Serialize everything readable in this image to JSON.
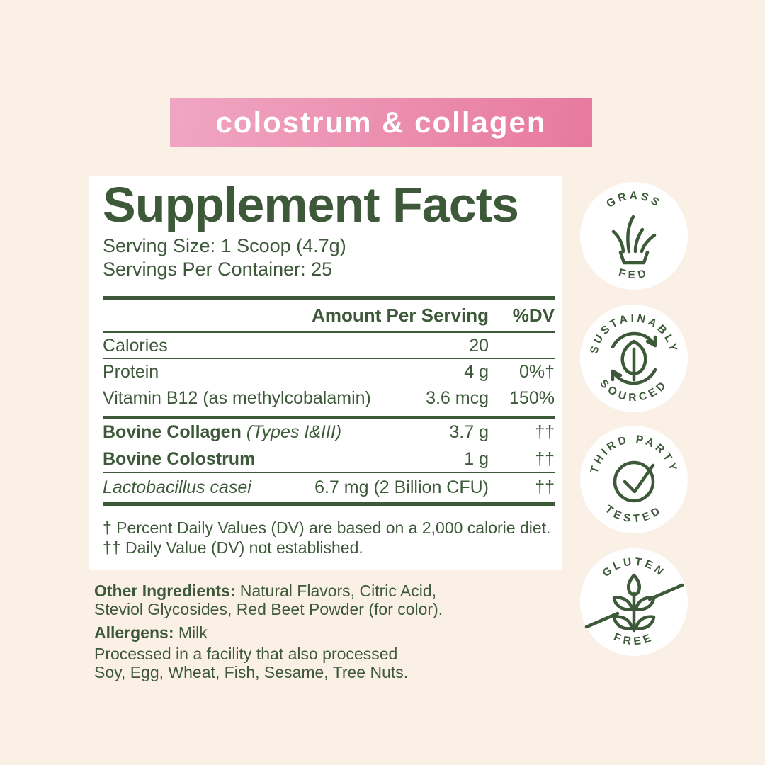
{
  "colors": {
    "background": "#FAF0E5",
    "card": "#FFFFFF",
    "green": "#3D5939",
    "pink_light": "#F0A6C2",
    "pink_dark": "#E8799E",
    "text_on_banner": "#FFFFFF"
  },
  "banner": {
    "label": "colostrum & collagen"
  },
  "panel": {
    "title": "Supplement Facts",
    "serving_size": "Serving Size: 1 Scoop (4.7g)",
    "servings_per_container": "Servings Per Container: 25",
    "table": {
      "amount_header": "Amount Per Serving",
      "dv_header": "%DV",
      "section1": [
        {
          "name": "Calories",
          "amount": "20",
          "dv": ""
        },
        {
          "name": "Protein",
          "amount": "4 g",
          "dv": "0%†"
        },
        {
          "name": "Vitamin B12 (as methylcobalamin)",
          "amount": "3.6 mcg",
          "dv": "150%"
        }
      ],
      "section2": [
        {
          "name": "Bovine Collagen",
          "name_style": "bold",
          "name_suffix": "(Types I&III)",
          "suffix_style": "italic",
          "amount": "3.7 g",
          "dv": "††"
        },
        {
          "name": "Bovine Colostrum",
          "name_style": "bold",
          "amount": "1 g",
          "dv": "††"
        },
        {
          "name": "Lactobacillus casei",
          "name_style": "italic",
          "amount": "6.7 mg (2 Billion CFU)",
          "dv": "††"
        }
      ]
    },
    "footnotes": [
      "† Percent Daily Values (DV) are based on a 2,000 calorie diet.",
      "†† Daily Value (DV) not established."
    ]
  },
  "other_info": {
    "other_ingredients_label": "Other Ingredients:",
    "other_ingredients_text": " Natural Flavors, Citric Acid,\nSteviol Glycosides,  Red Beet Powder (for color).",
    "allergens_label": "Allergens:",
    "allergens_text": " Milk",
    "facility_text": "Processed in a facility that also processed\nSoy, Egg, Wheat, Fish, Sesame, Tree Nuts."
  },
  "badges": [
    {
      "top_text": "GRASS",
      "bottom_text": "FED",
      "icon": "grass-icon"
    },
    {
      "top_text": "SUSTAINABLY",
      "bottom_text": "SOURCED",
      "icon": "leaf-recycle-icon"
    },
    {
      "top_text": "THIRD PARTY",
      "bottom_text": "TESTED",
      "icon": "check-circle-icon"
    },
    {
      "top_text": "GLUTEN",
      "bottom_text": "FREE",
      "icon": "wheat-slash-icon"
    }
  ]
}
